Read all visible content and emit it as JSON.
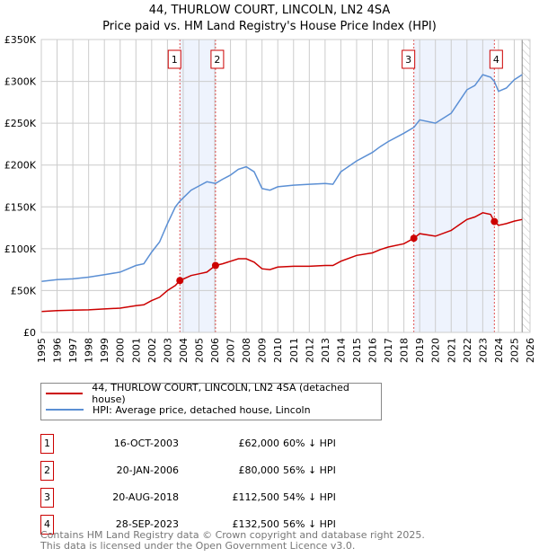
{
  "chart_data": {
    "type": "line",
    "title": "44, THURLOW COURT, LINCOLN, LN2 4SA",
    "subtitle": "Price paid vs. HM Land Registry's House Price Index (HPI)",
    "xlim": [
      1995,
      2026
    ],
    "ylim": [
      0,
      350000
    ],
    "y_ticks": [
      0,
      50000,
      100000,
      150000,
      200000,
      250000,
      300000,
      350000
    ],
    "y_tick_labels": [
      "£0",
      "£50K",
      "£100K",
      "£150K",
      "£200K",
      "£250K",
      "£300K",
      "£350K"
    ],
    "x_ticks": [
      1995,
      1996,
      1997,
      1998,
      1999,
      2000,
      2001,
      2002,
      2003,
      2004,
      2005,
      2006,
      2007,
      2008,
      2009,
      2010,
      2011,
      2012,
      2013,
      2014,
      2015,
      2016,
      2017,
      2018,
      2019,
      2020,
      2021,
      2022,
      2023,
      2024,
      2025,
      2026
    ],
    "grid": true,
    "series": [
      {
        "name": "44, THURLOW COURT, LINCOLN, LN2 4SA (detached house)",
        "color": "#cc0000",
        "x": [
          1995,
          1996,
          1997,
          1998,
          1999,
          2000,
          2001,
          2001.5,
          2002,
          2002.5,
          2003,
          2003.5,
          2003.79,
          2004.5,
          2005,
          2005.5,
          2006.05,
          2006.5,
          2007,
          2007.5,
          2008,
          2008.5,
          2009,
          2009.5,
          2010,
          2011,
          2012,
          2013,
          2013.5,
          2014,
          2015,
          2016,
          2016.5,
          2017,
          2018,
          2018.63,
          2019,
          2020,
          2021,
          2022,
          2022.5,
          2023,
          2023.5,
          2023.74,
          2024,
          2024.5,
          2025,
          2025.5
        ],
        "y": [
          25000,
          26000,
          26500,
          27000,
          28000,
          29000,
          32000,
          33000,
          38000,
          42000,
          50000,
          56000,
          62000,
          68000,
          70000,
          72000,
          80000,
          82000,
          85000,
          88000,
          88000,
          84000,
          76000,
          75000,
          78000,
          79000,
          79000,
          80000,
          80000,
          85000,
          92000,
          95000,
          99000,
          102000,
          106000,
          112500,
          118000,
          115000,
          122000,
          135000,
          138000,
          143000,
          141000,
          132500,
          128000,
          130000,
          133000,
          135000
        ]
      },
      {
        "name": "HPI: Average price, detached house, Lincoln",
        "color": "#5b8fd4",
        "x": [
          1995,
          1996,
          1997,
          1998,
          1999,
          2000,
          2001,
          2001.5,
          2002,
          2002.5,
          2003,
          2003.5,
          2003.79,
          2004.5,
          2005,
          2005.5,
          2006.05,
          2006.5,
          2007,
          2007.5,
          2008,
          2008.5,
          2009,
          2009.5,
          2010,
          2011,
          2012,
          2013,
          2013.5,
          2014,
          2015,
          2016,
          2016.5,
          2017,
          2018,
          2018.63,
          2019,
          2020,
          2021,
          2022,
          2022.5,
          2023,
          2023.5,
          2023.74,
          2024,
          2024.5,
          2025,
          2025.5
        ],
        "y": [
          61000,
          63000,
          64000,
          66000,
          69000,
          72000,
          80000,
          82000,
          96000,
          108000,
          130000,
          150000,
          157000,
          170000,
          175000,
          180000,
          178000,
          183000,
          188000,
          195000,
          198000,
          192000,
          172000,
          170000,
          174000,
          176000,
          177000,
          178000,
          177000,
          192000,
          205000,
          215000,
          222000,
          228000,
          238000,
          245000,
          254000,
          250000,
          262000,
          290000,
          295000,
          308000,
          305000,
          300000,
          288000,
          292000,
          302000,
          308000
        ]
      }
    ],
    "sales": [
      {
        "label": "1",
        "x": 2003.79,
        "y": 62000
      },
      {
        "label": "2",
        "x": 2006.05,
        "y": 80000
      },
      {
        "label": "3",
        "x": 2018.63,
        "y": 112500
      },
      {
        "label": "4",
        "x": 2023.74,
        "y": 132500
      }
    ],
    "shaded_ranges": [
      [
        2003.79,
        2006.05
      ],
      [
        2018.63,
        2023.74
      ]
    ],
    "forecast_start": 2025.5,
    "legend_position": "below"
  },
  "legend": {
    "property": "44, THURLOW COURT, LINCOLN, LN2 4SA (detached house)",
    "hpi": "HPI: Average price, detached house, Lincoln"
  },
  "transactions": [
    {
      "num": "1",
      "date": "16-OCT-2003",
      "price": "£62,000",
      "hpi": "60% ↓ HPI"
    },
    {
      "num": "2",
      "date": "20-JAN-2006",
      "price": "£80,000",
      "hpi": "56% ↓ HPI"
    },
    {
      "num": "3",
      "date": "20-AUG-2018",
      "price": "£112,500",
      "hpi": "54% ↓ HPI"
    },
    {
      "num": "4",
      "date": "28-SEP-2023",
      "price": "£132,500",
      "hpi": "56% ↓ HPI"
    }
  ],
  "footer": {
    "line1": "Contains HM Land Registry data © Crown copyright and database right 2025.",
    "line2": "This data is licensed under the Open Government Licence v3.0."
  }
}
